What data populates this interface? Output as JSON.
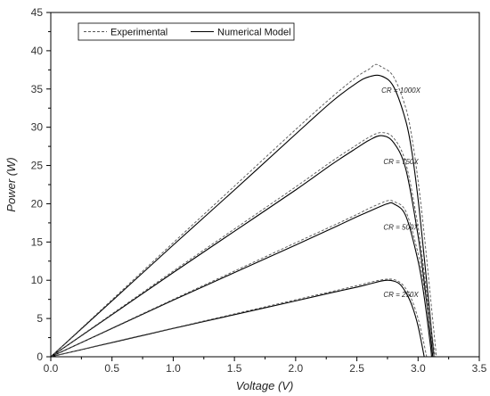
{
  "chart_data": {
    "type": "line",
    "title": "",
    "xlabel": "Voltage (V)",
    "ylabel": "Power (W)",
    "xlim": [
      0.0,
      3.5
    ],
    "ylim": [
      0,
      45
    ],
    "x_ticks": [
      "0.0",
      "0.5",
      "1.0",
      "1.5",
      "2.0",
      "2.5",
      "3.0",
      "3.5"
    ],
    "y_ticks": [
      "0",
      "5",
      "10",
      "15",
      "20",
      "25",
      "30",
      "35",
      "40",
      "45"
    ],
    "grid": false,
    "legend_position": "top-left",
    "legend": [
      {
        "label": "Experimental",
        "style": "dashed"
      },
      {
        "label": "Numerical Model",
        "style": "solid"
      }
    ],
    "annotations": [
      {
        "text": "CR = 1000X",
        "x": 2.86,
        "y": 34.5
      },
      {
        "text": "CR = 750X",
        "x": 2.86,
        "y": 25.2
      },
      {
        "text": "CR = 500X",
        "x": 2.86,
        "y": 16.6
      },
      {
        "text": "CR = 250X",
        "x": 2.86,
        "y": 7.8
      }
    ],
    "series": [
      {
        "group": "CR = 1000X",
        "style": "solid",
        "color": "#000000",
        "x": [
          0,
          0.5,
          1.0,
          1.5,
          2.0,
          2.3,
          2.5,
          2.6,
          2.7,
          2.8,
          2.9,
          2.95,
          3.0,
          3.05,
          3.1,
          3.13
        ],
        "y": [
          0,
          7.3,
          14.6,
          21.8,
          29.1,
          33.4,
          35.8,
          36.6,
          36.7,
          35.3,
          30.8,
          26.7,
          20.6,
          13.0,
          5.0,
          0
        ]
      },
      {
        "group": "CR = 1000X",
        "style": "dashed",
        "color": "#555555",
        "x": [
          0,
          0.5,
          1.0,
          1.5,
          2.0,
          2.3,
          2.5,
          2.6,
          2.65,
          2.7,
          2.8,
          2.9,
          2.95,
          3.0,
          3.05,
          3.1,
          3.15
        ],
        "y": [
          0,
          7.45,
          14.9,
          22.3,
          29.7,
          34.0,
          36.6,
          37.6,
          38.2,
          37.9,
          36.6,
          32.5,
          28.6,
          23.0,
          16.0,
          8.0,
          0
        ]
      },
      {
        "group": "CR = 750X",
        "style": "solid",
        "color": "#000000",
        "x": [
          0,
          0.5,
          1.0,
          1.5,
          2.0,
          2.3,
          2.5,
          2.6,
          2.7,
          2.8,
          2.9,
          3.0,
          3.05,
          3.1,
          3.12
        ],
        "y": [
          0,
          5.5,
          11.0,
          16.4,
          21.8,
          25.2,
          27.3,
          28.3,
          28.9,
          28.0,
          24.5,
          15.8,
          9.8,
          3.0,
          0
        ]
      },
      {
        "group": "CR = 750X",
        "style": "dashed",
        "color": "#555555",
        "x": [
          0,
          0.5,
          1.0,
          1.5,
          2.0,
          2.3,
          2.5,
          2.6,
          2.7,
          2.8,
          2.9,
          3.0,
          3.05,
          3.1,
          3.14
        ],
        "y": [
          0,
          5.6,
          11.2,
          16.7,
          22.2,
          25.6,
          27.7,
          28.7,
          29.3,
          28.6,
          25.3,
          17.0,
          11.0,
          4.5,
          0
        ]
      },
      {
        "group": "CR = 500X",
        "style": "solid",
        "color": "#000000",
        "x": [
          0,
          0.5,
          1.0,
          1.5,
          2.0,
          2.3,
          2.5,
          2.6,
          2.7,
          2.75,
          2.8,
          2.9,
          3.0,
          3.05,
          3.1,
          3.11
        ],
        "y": [
          0,
          3.7,
          7.4,
          11.0,
          14.6,
          16.8,
          18.3,
          19.0,
          19.7,
          20.0,
          20.0,
          18.4,
          12.5,
          7.8,
          1.6,
          0
        ]
      },
      {
        "group": "CR = 500X",
        "style": "dashed",
        "color": "#555555",
        "x": [
          0,
          0.5,
          1.0,
          1.5,
          2.0,
          2.3,
          2.5,
          2.6,
          2.7,
          2.75,
          2.8,
          2.9,
          3.0,
          3.05,
          3.1,
          3.13
        ],
        "y": [
          0,
          3.75,
          7.5,
          11.2,
          14.9,
          17.1,
          18.6,
          19.4,
          20.1,
          20.4,
          20.3,
          19.0,
          13.5,
          9.0,
          3.5,
          0
        ]
      },
      {
        "group": "CR = 250X",
        "style": "solid",
        "color": "#000000",
        "x": [
          0,
          0.5,
          1.0,
          1.5,
          2.0,
          2.3,
          2.5,
          2.6,
          2.7,
          2.75,
          2.8,
          2.85,
          2.9,
          2.95,
          3.0,
          3.05
        ],
        "y": [
          0,
          1.85,
          3.7,
          5.5,
          7.3,
          8.4,
          9.1,
          9.5,
          9.9,
          10.0,
          9.9,
          9.5,
          8.4,
          6.7,
          4.0,
          0
        ]
      },
      {
        "group": "CR = 250X",
        "style": "dashed",
        "color": "#555555",
        "x": [
          0,
          0.5,
          1.0,
          1.5,
          2.0,
          2.3,
          2.5,
          2.6,
          2.7,
          2.75,
          2.8,
          2.85,
          2.9,
          2.95,
          3.0,
          3.04,
          3.07
        ],
        "y": [
          0,
          1.9,
          3.75,
          5.6,
          7.45,
          8.55,
          9.3,
          9.7,
          10.05,
          10.15,
          10.1,
          9.75,
          8.9,
          7.4,
          5.0,
          2.3,
          0
        ]
      }
    ]
  }
}
